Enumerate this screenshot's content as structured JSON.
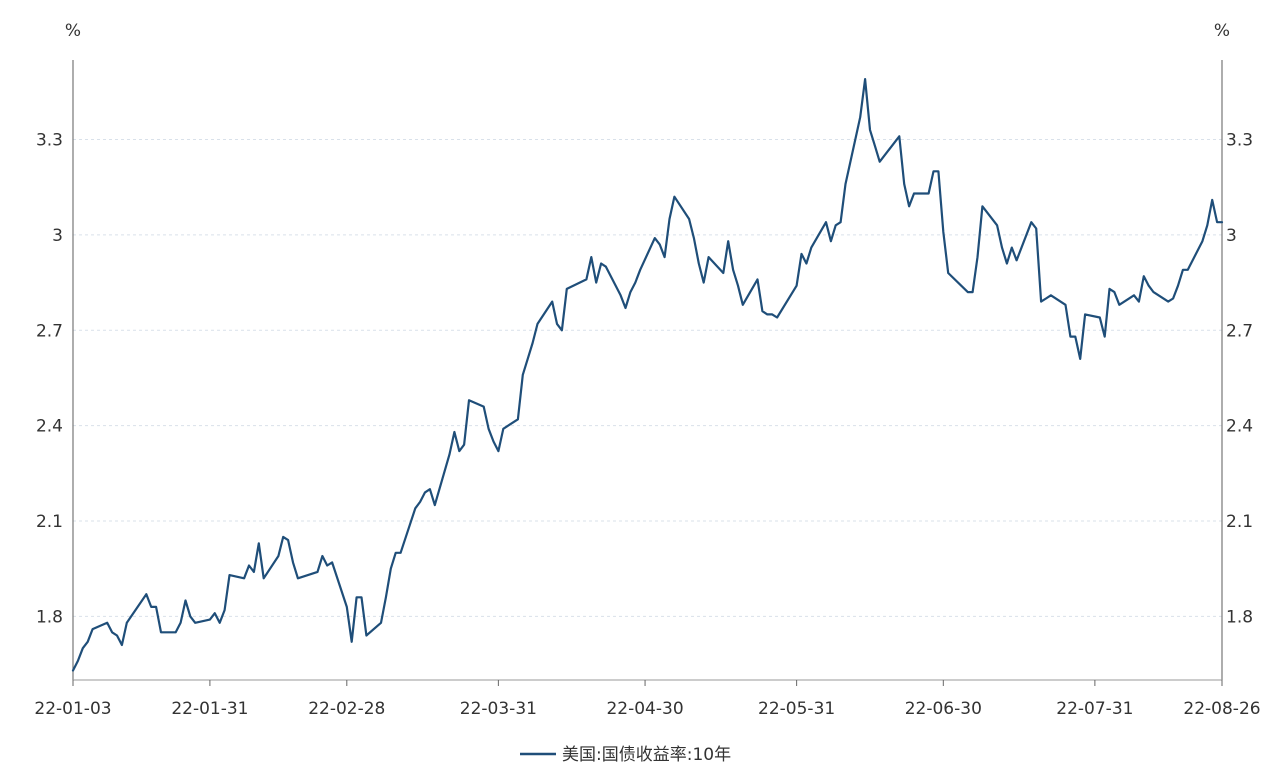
{
  "chart_data": {
    "type": "line",
    "left_unit": "%",
    "right_unit": "%",
    "ylim": [
      1.6,
      3.55
    ],
    "y_ticks": [
      1.8,
      2.1,
      2.4,
      2.7,
      3.0,
      3.3
    ],
    "y_tick_labels": [
      "1.8",
      "2.1",
      "2.4",
      "2.7",
      "3",
      "3.3"
    ],
    "x_range": [
      "2022-01-03",
      "2022-08-26"
    ],
    "x_ticks": [
      "2022-01-03",
      "2022-01-31",
      "2022-02-28",
      "2022-03-31",
      "2022-04-30",
      "2022-05-31",
      "2022-06-30",
      "2022-07-31",
      "2022-08-26"
    ],
    "x_tick_labels": [
      "22-01-03",
      "22-01-31",
      "22-02-28",
      "22-03-31",
      "22-04-30",
      "22-05-31",
      "22-06-30",
      "22-07-31",
      "22-08-26"
    ],
    "grid": true,
    "legend_position": "bottom",
    "colors": {
      "line": "#1f4e79",
      "grid": "#d9e1ea",
      "axis": "#666666"
    },
    "series": [
      {
        "name": "美国:国债收益率:10年",
        "x": [
          "2022-01-03",
          "2022-01-04",
          "2022-01-05",
          "2022-01-06",
          "2022-01-07",
          "2022-01-10",
          "2022-01-11",
          "2022-01-12",
          "2022-01-13",
          "2022-01-14",
          "2022-01-18",
          "2022-01-19",
          "2022-01-20",
          "2022-01-21",
          "2022-01-24",
          "2022-01-25",
          "2022-01-26",
          "2022-01-27",
          "2022-01-28",
          "2022-01-31",
          "2022-02-01",
          "2022-02-02",
          "2022-02-03",
          "2022-02-04",
          "2022-02-07",
          "2022-02-08",
          "2022-02-09",
          "2022-02-10",
          "2022-02-11",
          "2022-02-14",
          "2022-02-15",
          "2022-02-16",
          "2022-02-17",
          "2022-02-18",
          "2022-02-22",
          "2022-02-23",
          "2022-02-24",
          "2022-02-25",
          "2022-02-28",
          "2022-03-01",
          "2022-03-02",
          "2022-03-03",
          "2022-03-04",
          "2022-03-07",
          "2022-03-08",
          "2022-03-09",
          "2022-03-10",
          "2022-03-11",
          "2022-03-14",
          "2022-03-15",
          "2022-03-16",
          "2022-03-17",
          "2022-03-18",
          "2022-03-21",
          "2022-03-22",
          "2022-03-23",
          "2022-03-24",
          "2022-03-25",
          "2022-03-28",
          "2022-03-29",
          "2022-03-30",
          "2022-03-31",
          "2022-04-01",
          "2022-04-04",
          "2022-04-05",
          "2022-04-06",
          "2022-04-07",
          "2022-04-08",
          "2022-04-11",
          "2022-04-12",
          "2022-04-13",
          "2022-04-14",
          "2022-04-18",
          "2022-04-19",
          "2022-04-20",
          "2022-04-21",
          "2022-04-22",
          "2022-04-25",
          "2022-04-26",
          "2022-04-27",
          "2022-04-28",
          "2022-04-29",
          "2022-05-02",
          "2022-05-03",
          "2022-05-04",
          "2022-05-05",
          "2022-05-06",
          "2022-05-09",
          "2022-05-10",
          "2022-05-11",
          "2022-05-12",
          "2022-05-13",
          "2022-05-16",
          "2022-05-17",
          "2022-05-18",
          "2022-05-19",
          "2022-05-20",
          "2022-05-23",
          "2022-05-24",
          "2022-05-25",
          "2022-05-26",
          "2022-05-27",
          "2022-05-31",
          "2022-06-01",
          "2022-06-02",
          "2022-06-03",
          "2022-06-06",
          "2022-06-07",
          "2022-06-08",
          "2022-06-09",
          "2022-06-10",
          "2022-06-13",
          "2022-06-14",
          "2022-06-15",
          "2022-06-16",
          "2022-06-17",
          "2022-06-21",
          "2022-06-22",
          "2022-06-23",
          "2022-06-24",
          "2022-06-27",
          "2022-06-28",
          "2022-06-29",
          "2022-06-30",
          "2022-07-01",
          "2022-07-05",
          "2022-07-06",
          "2022-07-07",
          "2022-07-08",
          "2022-07-11",
          "2022-07-12",
          "2022-07-13",
          "2022-07-14",
          "2022-07-15",
          "2022-07-18",
          "2022-07-19",
          "2022-07-20",
          "2022-07-21",
          "2022-07-22",
          "2022-07-25",
          "2022-07-26",
          "2022-07-27",
          "2022-07-28",
          "2022-07-29",
          "2022-08-01",
          "2022-08-02",
          "2022-08-03",
          "2022-08-04",
          "2022-08-05",
          "2022-08-08",
          "2022-08-09",
          "2022-08-10",
          "2022-08-11",
          "2022-08-12",
          "2022-08-15",
          "2022-08-16",
          "2022-08-17",
          "2022-08-18",
          "2022-08-19",
          "2022-08-22",
          "2022-08-23",
          "2022-08-24",
          "2022-08-25",
          "2022-08-26"
        ],
        "values": [
          1.63,
          1.66,
          1.7,
          1.72,
          1.76,
          1.78,
          1.75,
          1.74,
          1.71,
          1.78,
          1.87,
          1.83,
          1.83,
          1.75,
          1.75,
          1.78,
          1.85,
          1.8,
          1.78,
          1.79,
          1.81,
          1.78,
          1.82,
          1.93,
          1.92,
          1.96,
          1.94,
          2.03,
          1.92,
          1.99,
          2.05,
          2.04,
          1.97,
          1.92,
          1.94,
          1.99,
          1.96,
          1.97,
          1.83,
          1.72,
          1.86,
          1.86,
          1.74,
          1.78,
          1.86,
          1.95,
          2.0,
          2.0,
          2.14,
          2.16,
          2.19,
          2.2,
          2.15,
          2.31,
          2.38,
          2.32,
          2.34,
          2.48,
          2.46,
          2.39,
          2.35,
          2.32,
          2.39,
          2.42,
          2.56,
          2.61,
          2.66,
          2.72,
          2.79,
          2.72,
          2.7,
          2.83,
          2.86,
          2.93,
          2.85,
          2.91,
          2.9,
          2.81,
          2.77,
          2.82,
          2.85,
          2.89,
          2.99,
          2.97,
          2.93,
          3.05,
          3.12,
          3.05,
          2.99,
          2.91,
          2.85,
          2.93,
          2.88,
          2.98,
          2.89,
          2.84,
          2.78,
          2.86,
          2.76,
          2.75,
          2.75,
          2.74,
          2.84,
          2.94,
          2.91,
          2.96,
          3.04,
          2.98,
          3.03,
          3.04,
          3.16,
          3.37,
          3.49,
          3.33,
          3.28,
          3.23,
          3.31,
          3.16,
          3.09,
          3.13,
          3.13,
          3.2,
          3.2,
          3.01,
          2.88,
          2.82,
          2.82,
          2.93,
          3.09,
          3.03,
          2.96,
          2.91,
          2.96,
          2.92,
          3.04,
          3.02,
          2.79,
          2.8,
          2.81,
          2.78,
          2.68,
          2.68,
          2.61,
          2.75,
          2.74,
          2.68,
          2.83,
          2.82,
          2.78,
          2.81,
          2.79,
          2.87,
          2.84,
          2.82,
          2.79,
          2.8,
          2.84,
          2.89,
          2.89,
          2.98,
          3.03,
          3.11,
          3.04,
          3.04
        ]
      }
    ]
  }
}
